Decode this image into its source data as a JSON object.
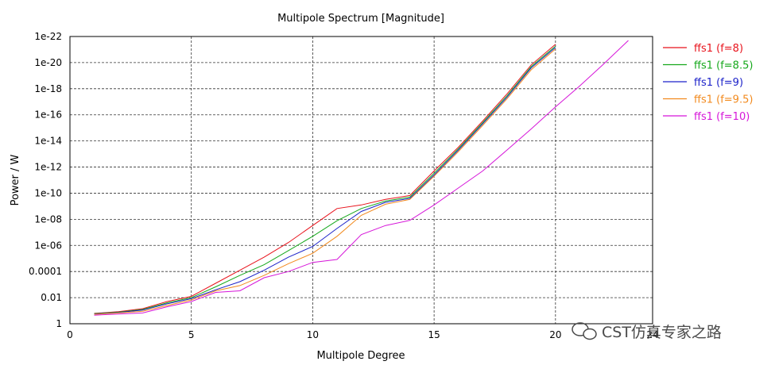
{
  "watermark": "CST仿真专家之路",
  "chart_data": {
    "type": "line",
    "title": "Multipole Spectrum [Magnitude]",
    "xlabel": "Multipole Degree",
    "ylabel": "Power / W",
    "xlim": [
      0,
      24
    ],
    "ylim_log10": [
      -22,
      0
    ],
    "y_scale": "log",
    "x_ticks": [
      0,
      5,
      10,
      15,
      20,
      24
    ],
    "x_tick_labels": [
      "0",
      "5",
      "10",
      "15",
      "20",
      "24"
    ],
    "y_ticks_log10": [
      0,
      -2,
      -4,
      -6,
      -8,
      -10,
      -12,
      -14,
      -16,
      -18,
      -20,
      -22
    ],
    "y_tick_labels": [
      "1",
      "0.01",
      "0.0001",
      "1e-06",
      "1e-08",
      "1e-10",
      "1e-12",
      "1e-14",
      "1e-16",
      "1e-18",
      "1e-20",
      "1e-22"
    ],
    "grid": true,
    "legend_position": "right",
    "series": [
      {
        "name": "ffs1 (f=8)",
        "color": "#e8121b",
        "x": [
          1,
          2,
          3,
          4,
          5,
          6,
          7,
          8,
          9,
          10,
          11,
          12,
          13,
          14,
          15,
          16,
          17,
          18,
          19,
          20
        ],
        "y": [
          0.16,
          0.12,
          0.07,
          0.02,
          0.008,
          0.0008,
          8e-05,
          8e-06,
          6e-07,
          3e-08,
          1.5e-09,
          8e-10,
          3e-10,
          1.5e-10,
          2e-12,
          3e-14,
          3e-16,
          2.5e-18,
          1.5e-20,
          4e-22
        ]
      },
      {
        "name": "ffs1 (f=8.5)",
        "color": "#15a81b",
        "x": [
          1,
          2,
          3,
          4,
          5,
          6,
          7,
          8,
          9,
          10,
          11,
          12,
          13,
          14,
          15,
          16,
          17,
          18,
          19,
          20
        ],
        "y": [
          0.17,
          0.13,
          0.08,
          0.025,
          0.01,
          0.0015,
          0.0002,
          3e-05,
          2.5e-06,
          2e-07,
          1.3e-08,
          1.5e-09,
          4e-10,
          2e-10,
          3e-12,
          4e-14,
          4e-16,
          3.5e-18,
          2e-20,
          5.5e-22
        ]
      },
      {
        "name": "ffs1 (f=9)",
        "color": "#1c22c9",
        "x": [
          1,
          2,
          3,
          4,
          5,
          6,
          7,
          8,
          9,
          10,
          11,
          12,
          13,
          14,
          15,
          16,
          17,
          18,
          19,
          20
        ],
        "y": [
          0.18,
          0.14,
          0.09,
          0.03,
          0.012,
          0.0025,
          0.0006,
          8e-05,
          8e-06,
          1.2e-06,
          5e-08,
          2.5e-09,
          5e-10,
          2.5e-10,
          4e-12,
          5e-14,
          5e-16,
          4.5e-18,
          2.5e-20,
          7e-22
        ]
      },
      {
        "name": "ffs1 (f=9.5)",
        "color": "#f28a1e",
        "x": [
          1,
          2,
          3,
          4,
          5,
          6,
          7,
          8,
          9,
          10,
          11,
          12,
          13,
          14,
          15,
          16,
          17,
          18,
          19,
          20
        ],
        "y": [
          0.19,
          0.15,
          0.11,
          0.04,
          0.015,
          0.003,
          0.0012,
          0.0002,
          2.5e-05,
          4e-06,
          2e-07,
          5e-09,
          7e-10,
          3e-10,
          5e-12,
          6.5e-14,
          6.5e-16,
          6e-18,
          3.5e-20,
          9e-22
        ]
      },
      {
        "name": "ffs1 (f=10)",
        "color": "#d615d9",
        "x": [
          1,
          2,
          3,
          4,
          5,
          6,
          7,
          8,
          9,
          10,
          11,
          12,
          13,
          14,
          15,
          16,
          17,
          18,
          19,
          20,
          21,
          22,
          23
        ],
        "y": [
          0.22,
          0.18,
          0.15,
          0.05,
          0.02,
          0.004,
          0.003,
          0.0003,
          0.0001,
          2e-05,
          1.2e-05,
          1.5e-07,
          3e-08,
          1.2e-08,
          8e-10,
          4e-11,
          2e-12,
          5e-14,
          1.2e-15,
          2.5e-17,
          6e-19,
          1.2e-20,
          2e-22
        ]
      }
    ]
  }
}
